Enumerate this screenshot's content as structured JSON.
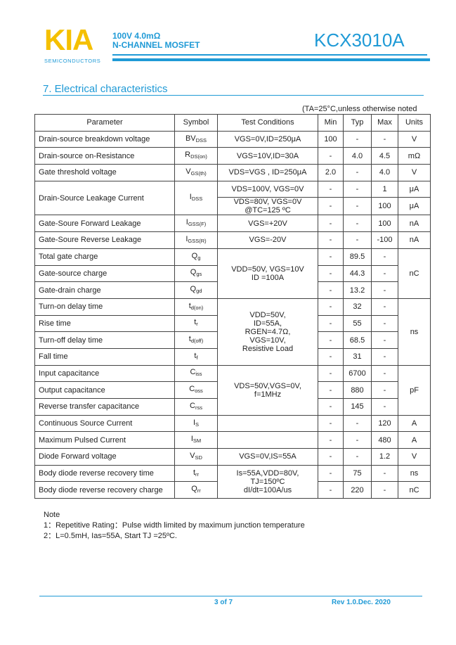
{
  "header": {
    "logo": "KIA",
    "logo_sub": "SEMICONDUCTORS",
    "spec_line1": "100V 4.0mΩ",
    "spec_line2": "N-CHANNEL MOSFET",
    "part_number": "KCX3010A",
    "accent_color": "#1f9ad6",
    "logo_color": "#f5c000"
  },
  "section": {
    "title": "7.  Electrical characteristics",
    "condition_note": "(TA=25°C,unless otherwise noted"
  },
  "table": {
    "headers": [
      "Parameter",
      "Symbol",
      "Test Conditions",
      "Min",
      "Typ",
      "Max",
      "Units"
    ],
    "rows": [
      {
        "param": "Drain-source breakdown voltage",
        "sym": [
          "BV",
          "DSS"
        ],
        "cond": "VGS=0V,ID=250μA",
        "min": "100",
        "typ": "-",
        "max": "-",
        "unit": "V"
      },
      {
        "param": "Drain-source on-Resistance",
        "sym": [
          "R",
          "DS(on)"
        ],
        "cond": "VGS=10V,ID=30A",
        "min": "-",
        "typ": "4.0",
        "max": "4.5",
        "unit": "mΩ"
      },
      {
        "param": "Gate threshold voltage",
        "sym": [
          "V",
          "GS(th)"
        ],
        "cond": "VDS=VGS , ID=250μA",
        "min": "2.0",
        "typ": "-",
        "max": "4.0",
        "unit": "V"
      },
      {
        "param": "Drain-Source Leakage Current",
        "sym": [
          "I",
          "DSS"
        ],
        "cond": "VDS=100V, VGS=0V",
        "min": "-",
        "typ": "-",
        "max": "1",
        "unit": "μA"
      },
      {
        "param": null,
        "sym": null,
        "cond": "VDS=80V, VGS=0V\n@TC=125 ºC",
        "min": "-",
        "typ": "-",
        "max": "100",
        "unit": "μA"
      },
      {
        "param": "Gate-Soure Forward Leakage",
        "sym": [
          "I",
          "GSS(F)"
        ],
        "cond": "VGS=+20V",
        "min": "-",
        "typ": "-",
        "max": "100",
        "unit": "nA"
      },
      {
        "param": "Gate-Soure Reverse Leakage",
        "sym": [
          "I",
          "GSS(R)"
        ],
        "cond": "VGS=-20V",
        "min": "-",
        "typ": "-",
        "max": "-100",
        "unit": "nA"
      },
      {
        "param": "Total gate charge",
        "sym": [
          "Q",
          "g"
        ],
        "cond": "VDD=50V, VGS=10V\nID =100A",
        "min": "-",
        "typ": "89.5",
        "max": "-",
        "unit": "nC"
      },
      {
        "param": "Gate-source charge",
        "sym": [
          "Q",
          "gs"
        ],
        "cond": null,
        "min": "-",
        "typ": "44.3",
        "max": "-",
        "unit": null
      },
      {
        "param": "Gate-drain charge",
        "sym": [
          "Q",
          "gd"
        ],
        "cond": null,
        "min": "-",
        "typ": "13.2",
        "max": "-",
        "unit": null
      },
      {
        "param": "Turn-on delay time",
        "sym": [
          "t",
          "d(on)"
        ],
        "cond": "VDD=50V,\nID=55A,\nRGEN=4.7Ω,\nVGS=10V,\nResistive Load",
        "min": "-",
        "typ": "32",
        "max": "-",
        "unit": "ns"
      },
      {
        "param": "Rise time",
        "sym": [
          "t",
          "r"
        ],
        "cond": null,
        "min": "-",
        "typ": "55",
        "max": "-",
        "unit": null
      },
      {
        "param": "Turn-off delay time",
        "sym": [
          "t",
          "d(off)"
        ],
        "cond": null,
        "min": "-",
        "typ": "68.5",
        "max": "-",
        "unit": null
      },
      {
        "param": "Fall time",
        "sym": [
          "t",
          "f"
        ],
        "cond": null,
        "min": "-",
        "typ": "31",
        "max": "-",
        "unit": null
      },
      {
        "param": "Input capacitance",
        "sym": [
          "C",
          "iss"
        ],
        "cond": "VDS=50V,VGS=0V,\nf=1MHz",
        "min": "-",
        "typ": "6700",
        "max": "-",
        "unit": "pF"
      },
      {
        "param": "Output capacitance",
        "sym": [
          "C",
          "oss"
        ],
        "cond": null,
        "min": "-",
        "typ": "880",
        "max": "-",
        "unit": null
      },
      {
        "param": "Reverse transfer capacitance",
        "sym": [
          "C",
          "rss"
        ],
        "cond": null,
        "min": "-",
        "typ": "145",
        "max": "-",
        "unit": null
      },
      {
        "param": "Continuous Source Current",
        "sym": [
          "I",
          "S"
        ],
        "cond": "",
        "min": "-",
        "typ": "-",
        "max": "120",
        "unit": "A"
      },
      {
        "param": "Maximum Pulsed Current",
        "sym": [
          "I",
          "SM"
        ],
        "cond": "",
        "min": "-",
        "typ": "-",
        "max": "480",
        "unit": "A"
      },
      {
        "param": "Diode Forward voltage",
        "sym": [
          "V",
          "SD"
        ],
        "cond": "VGS=0V,IS=55A",
        "min": "-",
        "typ": "-",
        "max": "1.2",
        "unit": "V"
      },
      {
        "param": "Body diode reverse recovery time",
        "sym": [
          "t",
          "rr"
        ],
        "cond": "Is=55A,VDD=80V,\nTJ=150ºC\ndI/dt=100A/us",
        "min": "-",
        "typ": "75",
        "max": "-",
        "unit": "ns"
      },
      {
        "param": "Body diode reverse recovery charge",
        "sym": [
          "Q",
          "rr"
        ],
        "cond": null,
        "min": "-",
        "typ": "220",
        "max": "-",
        "unit": "nC"
      }
    ]
  },
  "notes": {
    "title": "Note",
    "items": [
      "1：Repetitive Rating：Pulse width limited by maximum junction temperature",
      "2：L=0.5mH, Ias=55A, Start TJ =25ºC."
    ]
  },
  "footer": {
    "page": "3 of 7",
    "revision": "Rev 1.0.Dec. 2020"
  }
}
